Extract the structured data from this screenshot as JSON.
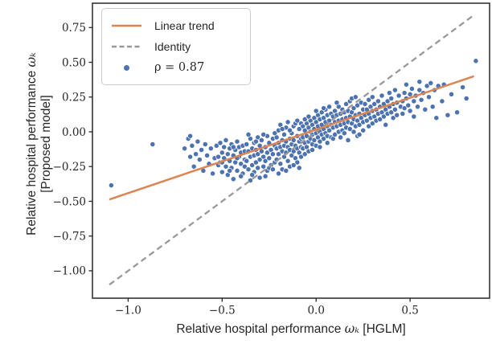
{
  "chart_data": {
    "type": "scatter",
    "title": "",
    "xlabel": {
      "prefix": "Relative hospital performance ",
      "math": "ωₖ",
      "suffix": " [HGLM]"
    },
    "ylabel": {
      "line1_prefix": "Relative hospital performance ",
      "line1_math": "ωₖ",
      "line2": "[Proposed model]"
    },
    "xlim": [
      -1.19,
      0.923
    ],
    "ylim": [
      -1.197,
      0.925
    ],
    "xticks": [
      -1.0,
      -0.5,
      0.0,
      0.5
    ],
    "yticks": [
      0.75,
      0.5,
      0.25,
      0.0,
      -0.25,
      -0.5,
      -0.75,
      -1.0
    ],
    "grid": false,
    "legend_position": "upper-left",
    "legend": [
      {
        "label": "Linear trend",
        "swatch": "solid-line",
        "color": "#DD8452"
      },
      {
        "label": "Identity",
        "swatch": "dashed-line",
        "color": "#999999"
      },
      {
        "label": "ρ = 0.87",
        "swatch": "dot",
        "color": "#4C72B0"
      }
    ],
    "correlation": 0.87,
    "trend_line": {
      "x": [
        -1.1,
        0.84
      ],
      "y": [
        -0.487,
        0.4
      ],
      "color": "#DD8452"
    },
    "identity_line": {
      "x": [
        -1.1,
        0.83
      ],
      "y": [
        -1.1,
        0.83
      ],
      "color": "#999999"
    },
    "points_color": "#4C72B0",
    "spine_color": "#262626",
    "points": [
      [
        -1.09,
        -0.385
      ],
      [
        -0.87,
        -0.09
      ],
      [
        -0.7,
        -0.12
      ],
      [
        -0.68,
        -0.05
      ],
      [
        -0.67,
        -0.03
      ],
      [
        -0.67,
        -0.18
      ],
      [
        -0.66,
        -0.1
      ],
      [
        -0.65,
        -0.25
      ],
      [
        -0.64,
        -0.16
      ],
      [
        -0.63,
        -0.07
      ],
      [
        -0.62,
        -0.2
      ],
      [
        -0.61,
        -0.13
      ],
      [
        -0.6,
        -0.28
      ],
      [
        -0.59,
        -0.09
      ],
      [
        -0.58,
        -0.17
      ],
      [
        -0.57,
        -0.23
      ],
      [
        -0.56,
        -0.12
      ],
      [
        -0.55,
        -0.3
      ],
      [
        -0.54,
        -0.19
      ],
      [
        -0.53,
        -0.1
      ],
      [
        -0.52,
        -0.24
      ],
      [
        -0.51,
        -0.08
      ],
      [
        -0.51,
        -0.22
      ],
      [
        -0.5,
        -0.15
      ],
      [
        -0.5,
        -0.29
      ],
      [
        -0.49,
        -0.11
      ],
      [
        -0.49,
        -0.19
      ],
      [
        -0.48,
        -0.25
      ],
      [
        -0.48,
        -0.06
      ],
      [
        -0.47,
        -0.16
      ],
      [
        -0.47,
        -0.31
      ],
      [
        -0.46,
        -0.12
      ],
      [
        -0.46,
        -0.21
      ],
      [
        -0.45,
        -0.09
      ],
      [
        -0.45,
        -0.26
      ],
      [
        -0.44,
        -0.17
      ],
      [
        -0.44,
        -0.34
      ],
      [
        -0.43,
        -0.13
      ],
      [
        -0.43,
        -0.22
      ],
      [
        -0.42,
        -0.07
      ],
      [
        -0.42,
        -0.28
      ],
      [
        -0.41,
        -0.18
      ],
      [
        -0.41,
        -0.11
      ],
      [
        -0.4,
        -0.23
      ],
      [
        -0.4,
        -0.15
      ],
      [
        -0.39,
        -0.3
      ],
      [
        -0.39,
        -0.1
      ],
      [
        -0.38,
        -0.2
      ],
      [
        -0.38,
        -0.14
      ],
      [
        -0.52,
        -0.18
      ],
      [
        -0.5,
        -0.22
      ],
      [
        -0.46,
        -0.28
      ],
      [
        -0.44,
        -0.11
      ],
      [
        -0.42,
        -0.19
      ],
      [
        -0.4,
        -0.32
      ],
      [
        -0.38,
        -0.25
      ],
      [
        -0.37,
        -0.09
      ],
      [
        -0.37,
        -0.21
      ],
      [
        -0.36,
        -0.14
      ],
      [
        -0.36,
        -0.27
      ],
      [
        -0.35,
        -0.05
      ],
      [
        -0.35,
        -0.18
      ],
      [
        -0.35,
        -0.35
      ],
      [
        -0.34,
        -0.12
      ],
      [
        -0.34,
        -0.24
      ],
      [
        -0.33,
        -0.08
      ],
      [
        -0.33,
        -0.17
      ],
      [
        -0.33,
        -0.29
      ],
      [
        -0.32,
        -0.13
      ],
      [
        -0.32,
        -0.22
      ],
      [
        -0.31,
        -0.04
      ],
      [
        -0.31,
        -0.16
      ],
      [
        -0.31,
        -0.26
      ],
      [
        -0.3,
        -0.1
      ],
      [
        -0.3,
        -0.2
      ],
      [
        -0.3,
        -0.33
      ],
      [
        -0.29,
        -0.14
      ],
      [
        -0.29,
        -0.06
      ],
      [
        -0.28,
        -0.18
      ],
      [
        -0.28,
        -0.25
      ],
      [
        -0.27,
        -0.11
      ],
      [
        -0.27,
        -0.21
      ],
      [
        -0.26,
        -0.03
      ],
      [
        -0.26,
        -0.15
      ],
      [
        -0.26,
        -0.28
      ],
      [
        -0.25,
        -0.08
      ],
      [
        -0.25,
        -0.19
      ],
      [
        -0.24,
        -0.13
      ],
      [
        -0.24,
        -0.24
      ],
      [
        -0.23,
        -0.05
      ],
      [
        -0.23,
        -0.16
      ],
      [
        -0.22,
        -0.1
      ],
      [
        -0.22,
        -0.22
      ],
      [
        -0.36,
        -0.02
      ],
      [
        -0.34,
        -0.31
      ],
      [
        -0.32,
        -0.07
      ],
      [
        -0.28,
        -0.02
      ],
      [
        -0.27,
        -0.32
      ],
      [
        -0.25,
        -0.26
      ],
      [
        -0.23,
        -0.27
      ],
      [
        -0.22,
        -0.01
      ],
      [
        -0.21,
        -0.12
      ],
      [
        -0.21,
        -0.04
      ],
      [
        -0.21,
        -0.2
      ],
      [
        -0.2,
        -0.08
      ],
      [
        -0.2,
        -0.16
      ],
      [
        -0.2,
        0.01
      ],
      [
        -0.19,
        -0.11
      ],
      [
        -0.19,
        -0.23
      ],
      [
        -0.18,
        -0.06
      ],
      [
        -0.18,
        -0.14
      ],
      [
        -0.18,
        -0.27
      ],
      [
        -0.17,
        -0.02
      ],
      [
        -0.17,
        -0.1
      ],
      [
        -0.17,
        -0.18
      ],
      [
        -0.16,
        -0.07
      ],
      [
        -0.16,
        -0.15
      ],
      [
        -0.16,
        0.03
      ],
      [
        -0.15,
        -0.11
      ],
      [
        -0.15,
        -0.21
      ],
      [
        -0.14,
        -0.05
      ],
      [
        -0.14,
        -0.13
      ],
      [
        -0.14,
        -0.25
      ],
      [
        -0.13,
        -0.01
      ],
      [
        -0.13,
        -0.09
      ],
      [
        -0.13,
        -0.17
      ],
      [
        -0.12,
        -0.06
      ],
      [
        -0.12,
        -0.14
      ],
      [
        -0.12,
        0.04
      ],
      [
        -0.11,
        -0.1
      ],
      [
        -0.11,
        -0.19
      ],
      [
        -0.1,
        -0.03
      ],
      [
        -0.1,
        -0.12
      ],
      [
        -0.1,
        -0.22
      ],
      [
        -0.09,
        -0.07
      ],
      [
        -0.09,
        -0.15
      ],
      [
        -0.09,
        0.02
      ],
      [
        -0.08,
        -0.11
      ],
      [
        -0.08,
        -0.05
      ],
      [
        -0.19,
        0.05
      ],
      [
        -0.15,
        0.07
      ],
      [
        -0.11,
        0.06
      ],
      [
        -0.2,
        -0.3
      ],
      [
        -0.16,
        -0.28
      ],
      [
        -0.12,
        -0.24
      ],
      [
        -0.08,
        -0.18
      ],
      [
        -0.08,
        0.06
      ],
      [
        -0.18,
        0.02
      ],
      [
        -0.14,
        0.01
      ],
      [
        -0.1,
        0.08
      ],
      [
        -0.09,
        -0.26
      ],
      [
        -0.07,
        -0.04
      ],
      [
        -0.07,
        -0.12
      ],
      [
        -0.07,
        0.04
      ],
      [
        -0.06,
        -0.08
      ],
      [
        -0.06,
        0.01
      ],
      [
        -0.06,
        -0.16
      ],
      [
        -0.05,
        -0.03
      ],
      [
        -0.05,
        0.06
      ],
      [
        -0.05,
        -0.11
      ],
      [
        -0.04,
        -0.07
      ],
      [
        -0.04,
        0.03
      ],
      [
        -0.04,
        -0.14
      ],
      [
        -0.03,
        0.0
      ],
      [
        -0.03,
        -0.05
      ],
      [
        -0.03,
        0.08
      ],
      [
        -0.02,
        -0.09
      ],
      [
        -0.02,
        0.05
      ],
      [
        -0.02,
        -0.02
      ],
      [
        -0.01,
        0.02
      ],
      [
        -0.01,
        -0.06
      ],
      [
        -0.01,
        0.1
      ],
      [
        0.0,
        -0.01
      ],
      [
        0.0,
        0.07
      ],
      [
        0.0,
        -0.1
      ],
      [
        0.01,
        0.04
      ],
      [
        0.01,
        -0.04
      ],
      [
        0.01,
        0.12
      ],
      [
        0.02,
        0.0
      ],
      [
        0.02,
        0.09
      ],
      [
        0.02,
        -0.07
      ],
      [
        0.03,
        0.05
      ],
      [
        0.03,
        -0.02
      ],
      [
        0.03,
        0.14
      ],
      [
        0.04,
        0.02
      ],
      [
        0.04,
        0.1
      ],
      [
        0.04,
        -0.05
      ],
      [
        0.05,
        0.07
      ],
      [
        0.05,
        -0.01
      ],
      [
        0.05,
        0.16
      ],
      [
        0.06,
        0.04
      ],
      [
        0.06,
        0.12
      ],
      [
        0.06,
        -0.03
      ],
      [
        0.07,
        0.08
      ],
      [
        0.07,
        0.01
      ],
      [
        0.07,
        0.18
      ],
      [
        0.08,
        0.05
      ],
      [
        0.08,
        0.13
      ],
      [
        -0.06,
        0.09
      ],
      [
        -0.04,
        0.11
      ],
      [
        -0.02,
        -0.13
      ],
      [
        0.0,
        0.15
      ],
      [
        0.02,
        -0.11
      ],
      [
        0.04,
        0.17
      ],
      [
        0.06,
        -0.08
      ],
      [
        0.08,
        -0.04
      ],
      [
        0.09,
        0.03
      ],
      [
        0.09,
        0.11
      ],
      [
        0.09,
        -0.05
      ],
      [
        0.1,
        0.07
      ],
      [
        0.1,
        0.15
      ],
      [
        0.1,
        -0.02
      ],
      [
        0.11,
        0.04
      ],
      [
        0.11,
        0.12
      ],
      [
        0.12,
        0.0
      ],
      [
        0.12,
        0.08
      ],
      [
        0.12,
        0.18
      ],
      [
        0.13,
        0.05
      ],
      [
        0.13,
        0.13
      ],
      [
        0.13,
        -0.04
      ],
      [
        0.14,
        0.09
      ],
      [
        0.14,
        0.01
      ],
      [
        0.14,
        0.16
      ],
      [
        0.15,
        0.06
      ],
      [
        0.15,
        0.14
      ],
      [
        0.15,
        -0.01
      ],
      [
        0.16,
        0.1
      ],
      [
        0.16,
        0.03
      ],
      [
        0.16,
        0.2
      ],
      [
        0.17,
        0.07
      ],
      [
        0.17,
        0.15
      ],
      [
        0.18,
        0.02
      ],
      [
        0.18,
        0.11
      ],
      [
        0.18,
        0.22
      ],
      [
        0.19,
        0.06
      ],
      [
        0.19,
        0.14
      ],
      [
        0.2,
        0.09
      ],
      [
        0.2,
        0.0
      ],
      [
        0.2,
        0.17
      ],
      [
        0.21,
        0.12
      ],
      [
        0.21,
        0.04
      ],
      [
        0.22,
        0.08
      ],
      [
        0.22,
        0.19
      ],
      [
        0.22,
        -0.03
      ],
      [
        0.23,
        0.13
      ],
      [
        0.23,
        0.05
      ],
      [
        0.24,
        0.1
      ],
      [
        0.24,
        0.21
      ],
      [
        0.25,
        0.07
      ],
      [
        0.25,
        0.16
      ],
      [
        0.11,
        0.21
      ],
      [
        0.17,
        -0.06
      ],
      [
        0.19,
        0.24
      ],
      [
        0.21,
        0.25
      ],
      [
        0.23,
        -0.02
      ],
      [
        0.25,
        0.01
      ],
      [
        0.26,
        0.12
      ],
      [
        0.26,
        0.2
      ],
      [
        0.27,
        0.08
      ],
      [
        0.27,
        0.16
      ],
      [
        0.28,
        0.13
      ],
      [
        0.28,
        0.23
      ],
      [
        0.28,
        0.04
      ],
      [
        0.29,
        0.1
      ],
      [
        0.29,
        0.18
      ],
      [
        0.3,
        0.15
      ],
      [
        0.3,
        0.06
      ],
      [
        0.3,
        0.25
      ],
      [
        0.31,
        0.11
      ],
      [
        0.31,
        0.2
      ],
      [
        0.32,
        0.16
      ],
      [
        0.32,
        0.08
      ],
      [
        0.33,
        0.13
      ],
      [
        0.33,
        0.22
      ],
      [
        0.34,
        0.18
      ],
      [
        0.34,
        0.09
      ],
      [
        0.35,
        0.14
      ],
      [
        0.35,
        0.26
      ],
      [
        0.36,
        0.11
      ],
      [
        0.36,
        0.2
      ],
      [
        0.37,
        0.16
      ],
      [
        0.37,
        0.05
      ],
      [
        0.38,
        0.22
      ],
      [
        0.38,
        0.13
      ],
      [
        0.39,
        0.18
      ],
      [
        0.39,
        0.28
      ],
      [
        0.4,
        0.14
      ],
      [
        0.4,
        0.24
      ],
      [
        0.41,
        0.1
      ],
      [
        0.41,
        0.2
      ],
      [
        0.42,
        0.16
      ],
      [
        0.42,
        0.3
      ],
      [
        0.43,
        0.21
      ],
      [
        0.43,
        0.12
      ],
      [
        0.44,
        0.26
      ],
      [
        0.45,
        0.18
      ],
      [
        0.46,
        0.22
      ],
      [
        0.46,
        0.13
      ],
      [
        0.47,
        0.28
      ],
      [
        0.47,
        0.17
      ],
      [
        0.48,
        0.24
      ],
      [
        0.48,
        0.34
      ],
      [
        0.49,
        0.19
      ],
      [
        0.5,
        0.27
      ],
      [
        0.5,
        0.15
      ],
      [
        0.51,
        0.31
      ],
      [
        0.52,
        0.22
      ],
      [
        0.52,
        0.11
      ],
      [
        0.53,
        0.26
      ],
      [
        0.54,
        0.18
      ],
      [
        0.55,
        0.3
      ],
      [
        0.55,
        0.36
      ],
      [
        0.56,
        0.23
      ],
      [
        0.57,
        0.28
      ],
      [
        0.58,
        0.16
      ],
      [
        0.59,
        0.33
      ],
      [
        0.6,
        0.25
      ],
      [
        0.61,
        0.35
      ],
      [
        0.62,
        0.18
      ],
      [
        0.63,
        0.3
      ],
      [
        0.64,
        0.1
      ],
      [
        0.65,
        0.33
      ],
      [
        0.67,
        0.22
      ],
      [
        0.68,
        0.34
      ],
      [
        0.7,
        0.12
      ],
      [
        0.72,
        0.27
      ],
      [
        0.75,
        0.14
      ],
      [
        0.78,
        0.32
      ],
      [
        0.8,
        0.24
      ],
      [
        0.85,
        0.51
      ]
    ]
  }
}
